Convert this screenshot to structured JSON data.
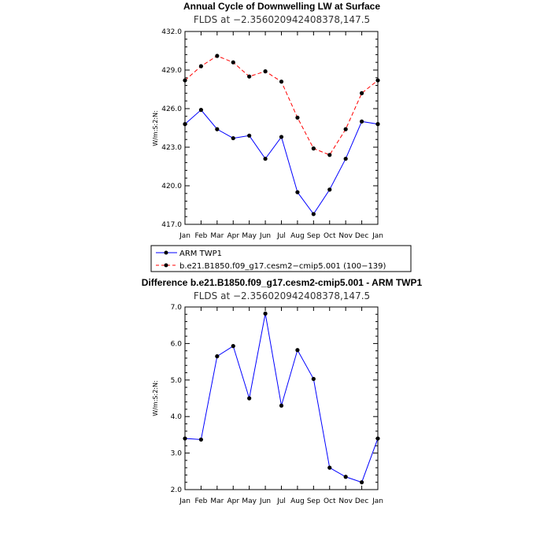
{
  "chart_data": [
    {
      "type": "line",
      "title": "Annual Cycle of Downwelling LW at Surface",
      "subtitle": "FLDS at −2.356020942408378,147.5",
      "ylabel": "W/m:S:2:N:",
      "xlabel": "",
      "categories": [
        "Jan",
        "Feb",
        "Mar",
        "Apr",
        "May",
        "Jun",
        "Jul",
        "Aug",
        "Sep",
        "Oct",
        "Nov",
        "Dec",
        "Jan"
      ],
      "ylim": [
        417.0,
        432.0
      ],
      "yticks": [
        "417.0",
        "420.0",
        "423.0",
        "426.0",
        "429.0",
        "432.0"
      ],
      "series": [
        {
          "name": "ARM TWP1",
          "color": "#0000ff",
          "dash": "solid",
          "values": [
            424.8,
            425.9,
            424.4,
            423.7,
            423.9,
            422.1,
            423.8,
            419.5,
            417.8,
            419.7,
            422.1,
            425.0,
            424.8
          ]
        },
        {
          "name": "b.e21.B1850.f09_g17.cesm2−cmip5.001 (100−139)",
          "color": "#ff0000",
          "dash": "dashed",
          "values": [
            428.2,
            429.3,
            430.1,
            429.6,
            428.5,
            428.9,
            428.1,
            425.3,
            422.9,
            422.4,
            424.4,
            427.2,
            428.2
          ]
        }
      ],
      "legend_position": "bottom"
    },
    {
      "type": "line",
      "title": "Difference b.e21.B1850.f09_g17.cesm2-cmip5.001 - ARM TWP1",
      "subtitle": "FLDS at −2.356020942408378,147.5",
      "ylabel": "W/m:S:2:N:",
      "xlabel": "",
      "categories": [
        "Jan",
        "Feb",
        "Mar",
        "Apr",
        "May",
        "Jun",
        "Jul",
        "Aug",
        "Sep",
        "Oct",
        "Nov",
        "Dec",
        "Jan"
      ],
      "ylim": [
        2.0,
        7.0
      ],
      "yticks": [
        "2.0",
        "3.0",
        "4.0",
        "5.0",
        "6.0",
        "7.0"
      ],
      "series": [
        {
          "name": "",
          "color": "#0000ff",
          "dash": "solid",
          "values": [
            3.4,
            3.37,
            5.65,
            5.93,
            4.5,
            6.82,
            4.3,
            5.82,
            5.03,
            2.6,
            2.35,
            2.2,
            3.4
          ]
        }
      ]
    }
  ]
}
